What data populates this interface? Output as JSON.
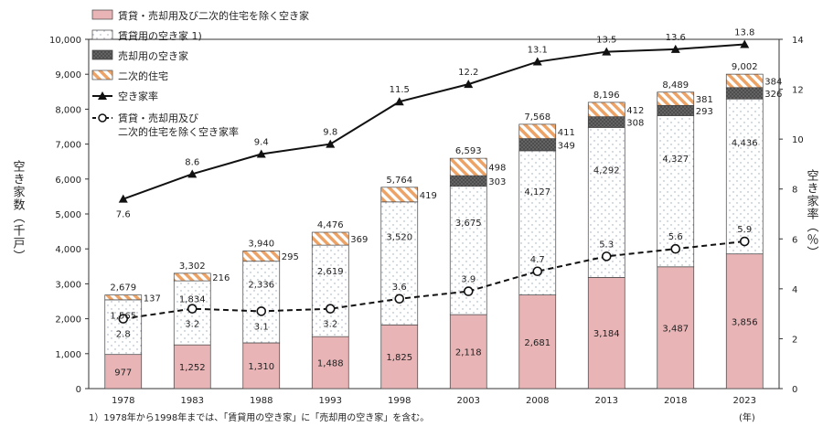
{
  "chart_data": {
    "type": "bar",
    "subtype": "stacked-bar-with-lines",
    "categories": [
      "1978",
      "1983",
      "1988",
      "1993",
      "1998",
      "2003",
      "2008",
      "2013",
      "2018",
      "2023"
    ],
    "x_unit_label": "(年)",
    "ylabel_left": "空き家数（千戸）",
    "ylabel_right": "空き家率（％）",
    "ylim_left": [
      0,
      10000
    ],
    "yticks_left": [
      "0",
      "1,000",
      "2,000",
      "3,000",
      "4,000",
      "5,000",
      "6,000",
      "7,000",
      "8,000",
      "9,000",
      "10,000"
    ],
    "ylim_right": [
      0,
      14
    ],
    "yticks_right": [
      "0",
      "2",
      "4",
      "6",
      "8",
      "10",
      "12",
      "14"
    ],
    "series": [
      {
        "key": "other",
        "name": "賃貸・売却用及び二次的住宅を除く空き家",
        "type": "bar",
        "color": "#e8b4b6",
        "values": [
          977,
          1252,
          1310,
          1488,
          1825,
          2118,
          2681,
          3184,
          3487,
          3856
        ],
        "labels": [
          "977",
          "1,252",
          "1,310",
          "1,488",
          "1,825",
          "2,118",
          "2,681",
          "3,184",
          "3,487",
          "3,856"
        ]
      },
      {
        "key": "rental",
        "name": "賃貸用の空き家 1)",
        "type": "bar",
        "color": "#ffffff",
        "values": [
          1565,
          1834,
          2336,
          2619,
          3520,
          3675,
          4127,
          4292,
          4327,
          4436
        ],
        "labels": [
          "1,565",
          "1,834",
          "2,336",
          "2,619",
          "3,520",
          "3,675",
          "4,127",
          "4,292",
          "4,327",
          "4,436"
        ]
      },
      {
        "key": "sale",
        "name": "売却用の空き家",
        "type": "bar",
        "color": "#555555",
        "values": [
          null,
          null,
          null,
          null,
          null,
          303,
          349,
          308,
          293,
          326
        ],
        "labels": [
          "",
          "",
          "",
          "",
          "",
          "303",
          "349",
          "308",
          "293",
          "326"
        ]
      },
      {
        "key": "secondary",
        "name": "二次的住宅",
        "type": "bar",
        "color": "#f0a868",
        "values": [
          137,
          216,
          295,
          369,
          419,
          498,
          411,
          412,
          381,
          384
        ],
        "labels": [
          "137",
          "216",
          "295",
          "369",
          "419",
          "498",
          "411",
          "412",
          "381",
          "384"
        ]
      },
      {
        "key": "rate",
        "name": "空き家率",
        "type": "line",
        "axis": "right",
        "values": [
          7.6,
          8.6,
          9.4,
          9.8,
          11.5,
          12.2,
          13.1,
          13.5,
          13.6,
          13.8
        ],
        "labels": [
          "7.6",
          "8.6",
          "9.4",
          "9.8",
          "11.5",
          "12.2",
          "13.1",
          "13.5",
          "13.6",
          "13.8"
        ]
      },
      {
        "key": "rate_other",
        "name": "賃貸・売却用及び二次的住宅を除く空き家率",
        "legend_lines": [
          "賃貸・売却用及び",
          "二次的住宅を除く空き家率"
        ],
        "type": "line",
        "axis": "right",
        "values": [
          2.8,
          3.2,
          3.1,
          3.2,
          3.6,
          3.9,
          4.7,
          5.3,
          5.6,
          5.9
        ],
        "labels": [
          "2.8",
          "3.2",
          "3.1",
          "3.2",
          "3.6",
          "3.9",
          "4.7",
          "5.3",
          "5.6",
          "5.9"
        ]
      }
    ],
    "totals": [
      2679,
      3302,
      3940,
      4476,
      5764,
      6593,
      7568,
      8196,
      8489,
      9002
    ],
    "total_labels": [
      "2,679",
      "3,302",
      "3,940",
      "4,476",
      "5,764",
      "6,593",
      "7,568",
      "8,196",
      "8,489",
      "9,002"
    ],
    "footnote": "1）1978年から1998年までは、「賃貸用の空き家」に「売却用の空き家」を含む。"
  }
}
